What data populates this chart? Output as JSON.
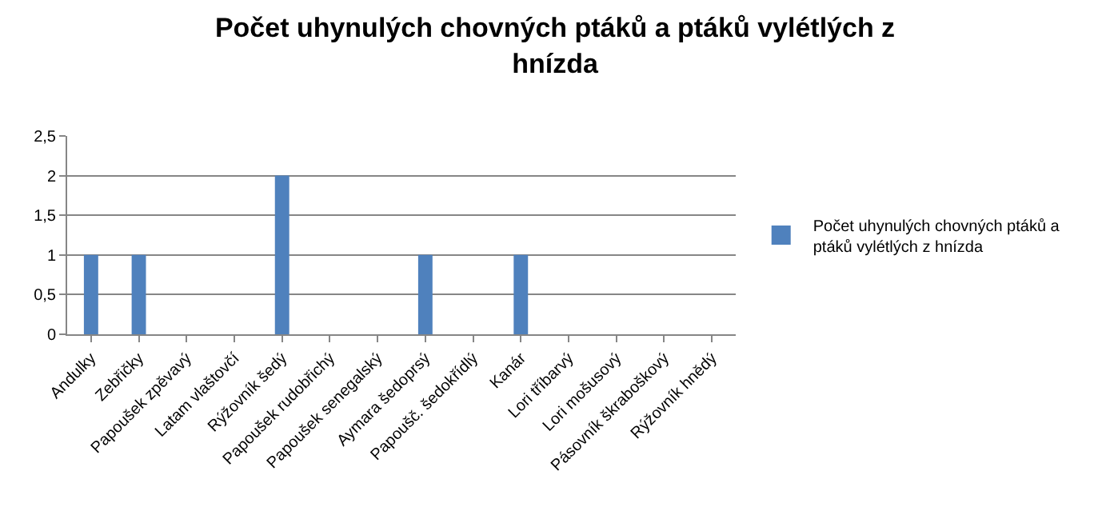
{
  "chart_data": {
    "type": "bar",
    "title": "Počet uhynulých chovných ptáků a ptáků vylétlých z hnízda",
    "categories": [
      "Andulky",
      "Zebřičky",
      "Papoušek zpěvavý",
      "Latam vlaštovčí",
      "Rýžovník šedý",
      "Papoušek rudobřichý",
      "Papoušek senegalský",
      "Aymara šedoprsý",
      "Papoušč. šedokřídlý",
      "Kanár",
      "Lori tříbarvý",
      "Lori mošusový",
      "Pásovník škraboškový",
      "Rýžovník hnědý"
    ],
    "series": [
      {
        "name": "Počet uhynulých chovných ptáků a ptáků vylétlých z hnízda",
        "color": "#4f81bd",
        "values": [
          1,
          1,
          0,
          0,
          2,
          0,
          0,
          1,
          0,
          1,
          0,
          0,
          0,
          0
        ]
      }
    ],
    "ylim": [
      0,
      2.5
    ],
    "yticks": [
      0,
      {
        "value": 0.5,
        "label": "0,5"
      },
      1,
      {
        "value": 1.5,
        "label": "1,5"
      },
      2,
      {
        "value": 2.5,
        "label": "2,5"
      }
    ],
    "grid": "y",
    "legend": "right"
  }
}
